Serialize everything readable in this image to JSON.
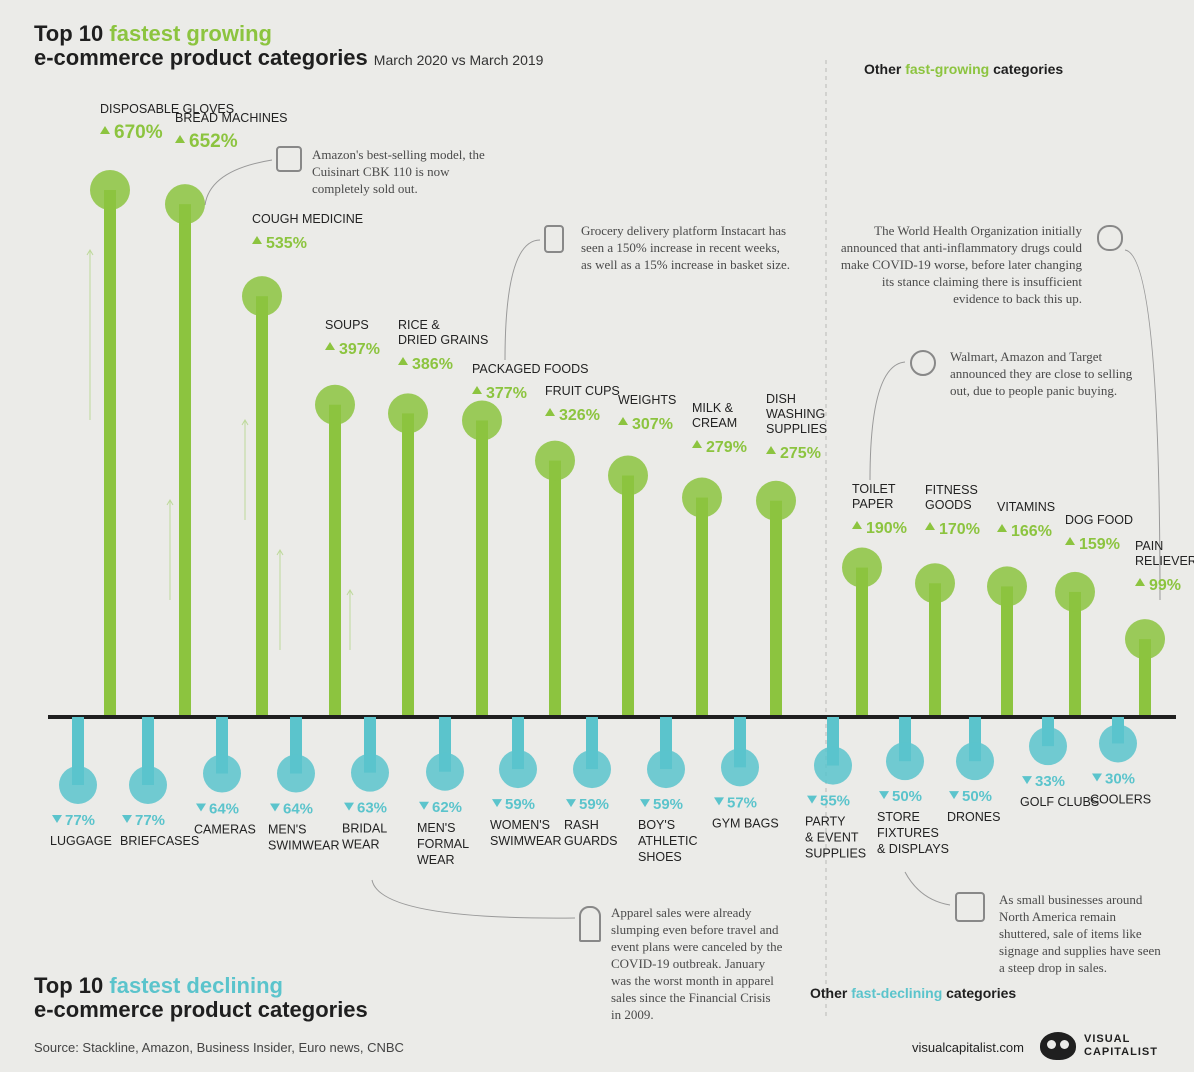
{
  "titles": {
    "top_line1_a": "Top 10 ",
    "top_line1_b": "fastest growing",
    "top_line2": "e-commerce product categories",
    "top_sub": "March 2020 vs March 2019",
    "bottom_line1_a": "Top 10 ",
    "bottom_line1_b": "fastest declining",
    "bottom_line2": "e-commerce product categories",
    "other_growing_a": "Other ",
    "other_growing_b": "fast-growing",
    "other_growing_c": " categories",
    "other_declining_a": "Other ",
    "other_declining_b": "fast-declining",
    "other_declining_c": " categories"
  },
  "notes": {
    "bread": "Amazon's best-selling model, the Cuisinart CBK 110 is now completely sold out.",
    "grocery": "Grocery delivery platform Instacart has seen a 150% increase in recent weeks, as well as a 15% increase in basket size.",
    "who": "The World Health Organization initially announced that anti-inflammatory drugs could make COVID-19 worse, before later changing its stance claiming there is insufficient evidence to back this up.",
    "toilet": "Walmart, Amazon and Target announced they are close to selling out, due to people panic buying.",
    "apparel": "Apparel sales were already slumping even before travel and event plans were canceled by the COVID-19 outbreak. January was the worst month in apparel sales since the Financial Crisis in 2009.",
    "small_biz": "As small businesses around North America remain shuttered, sale of items like signage and supplies have seen a steep drop in sales."
  },
  "footer": {
    "source": "Source: Stackline, Amazon, Business Insider, Euro news, CNBC",
    "site": "visualcapitalist.com",
    "logo_line1": "VISUAL",
    "logo_line2": "CAPITALIST"
  },
  "colors": {
    "growth": "#8cc43f",
    "decline": "#5bc4cc",
    "axis": "#1f1f1f",
    "background": "#ebebe8"
  },
  "chart_data": [
    {
      "type": "bar",
      "unit": "% change",
      "groups": [
        "Top 10 fastest growing",
        "Other fast-growing categories"
      ],
      "categories": [
        {
          "label": [
            "DISPOSABLE GLOVES"
          ],
          "value": 670,
          "display": "670%",
          "group": 0
        },
        {
          "label": [
            "BREAD MACHINES"
          ],
          "value": 652,
          "display": "652%",
          "group": 0
        },
        {
          "label": [
            "COUGH MEDICINE"
          ],
          "value": 535,
          "display": "535%",
          "group": 0
        },
        {
          "label": [
            "SOUPS"
          ],
          "value": 397,
          "display": "397%",
          "group": 0
        },
        {
          "label": [
            "RICE &",
            "DRIED GRAINS"
          ],
          "value": 386,
          "display": "386%",
          "group": 0
        },
        {
          "label": [
            "PACKAGED FOODS"
          ],
          "value": 377,
          "display": "377%",
          "group": 0
        },
        {
          "label": [
            "FRUIT CUPS"
          ],
          "value": 326,
          "display": "326%",
          "group": 0
        },
        {
          "label": [
            "WEIGHTS"
          ],
          "value": 307,
          "display": "307%",
          "group": 0
        },
        {
          "label": [
            "MILK &",
            "CREAM"
          ],
          "value": 279,
          "display": "279%",
          "group": 0
        },
        {
          "label": [
            "DISH",
            "WASHING",
            "SUPPLIES"
          ],
          "value": 275,
          "display": "275%",
          "group": 0
        },
        {
          "label": [
            "TOILET",
            "PAPER"
          ],
          "value": 190,
          "display": "190%",
          "group": 1
        },
        {
          "label": [
            "FITNESS",
            "GOODS"
          ],
          "value": 170,
          "display": "170%",
          "group": 1
        },
        {
          "label": [
            "VITAMINS"
          ],
          "value": 166,
          "display": "166%",
          "group": 1
        },
        {
          "label": [
            "DOG FOOD"
          ],
          "value": 159,
          "display": "159%",
          "group": 1
        },
        {
          "label": [
            "PAIN",
            "RELIEVERS"
          ],
          "value": 99,
          "display": "99%",
          "group": 1
        }
      ]
    },
    {
      "type": "bar",
      "unit": "% change",
      "groups": [
        "Top 10 fastest declining",
        "Other fast-declining categories"
      ],
      "categories": [
        {
          "label": [
            "LUGGAGE"
          ],
          "value": -77,
          "display": "77%",
          "group": 0
        },
        {
          "label": [
            "BRIEFCASES"
          ],
          "value": -77,
          "display": "77%",
          "group": 0
        },
        {
          "label": [
            "CAMERAS"
          ],
          "value": -64,
          "display": "64%",
          "group": 0
        },
        {
          "label": [
            "MEN'S",
            "SWIMWEAR"
          ],
          "value": -64,
          "display": "64%",
          "group": 0
        },
        {
          "label": [
            "BRIDAL",
            "WEAR"
          ],
          "value": -63,
          "display": "63%",
          "group": 0
        },
        {
          "label": [
            "MEN'S",
            "FORMAL",
            "WEAR"
          ],
          "value": -62,
          "display": "62%",
          "group": 0
        },
        {
          "label": [
            "WOMEN'S",
            "SWIMWEAR"
          ],
          "value": -59,
          "display": "59%",
          "group": 0
        },
        {
          "label": [
            "RASH",
            "GUARDS"
          ],
          "value": -59,
          "display": "59%",
          "group": 0
        },
        {
          "label": [
            "BOY'S",
            "ATHLETIC",
            "SHOES"
          ],
          "value": -59,
          "display": "59%",
          "group": 0
        },
        {
          "label": [
            "GYM BAGS"
          ],
          "value": -57,
          "display": "57%",
          "group": 0
        },
        {
          "label": [
            "PARTY",
            "& EVENT",
            "SUPPLIES"
          ],
          "value": -55,
          "display": "55%",
          "group": 1
        },
        {
          "label": [
            "STORE",
            "FIXTURES",
            "& DISPLAYS"
          ],
          "value": -50,
          "display": "50%",
          "group": 1
        },
        {
          "label": [
            "DRONES"
          ],
          "value": -50,
          "display": "50%",
          "group": 1
        },
        {
          "label": [
            "GOLF CLUBS"
          ],
          "value": -33,
          "display": "33%",
          "group": 1
        },
        {
          "label": [
            "COOLERS"
          ],
          "value": -30,
          "display": "30%",
          "group": 1
        }
      ]
    }
  ]
}
